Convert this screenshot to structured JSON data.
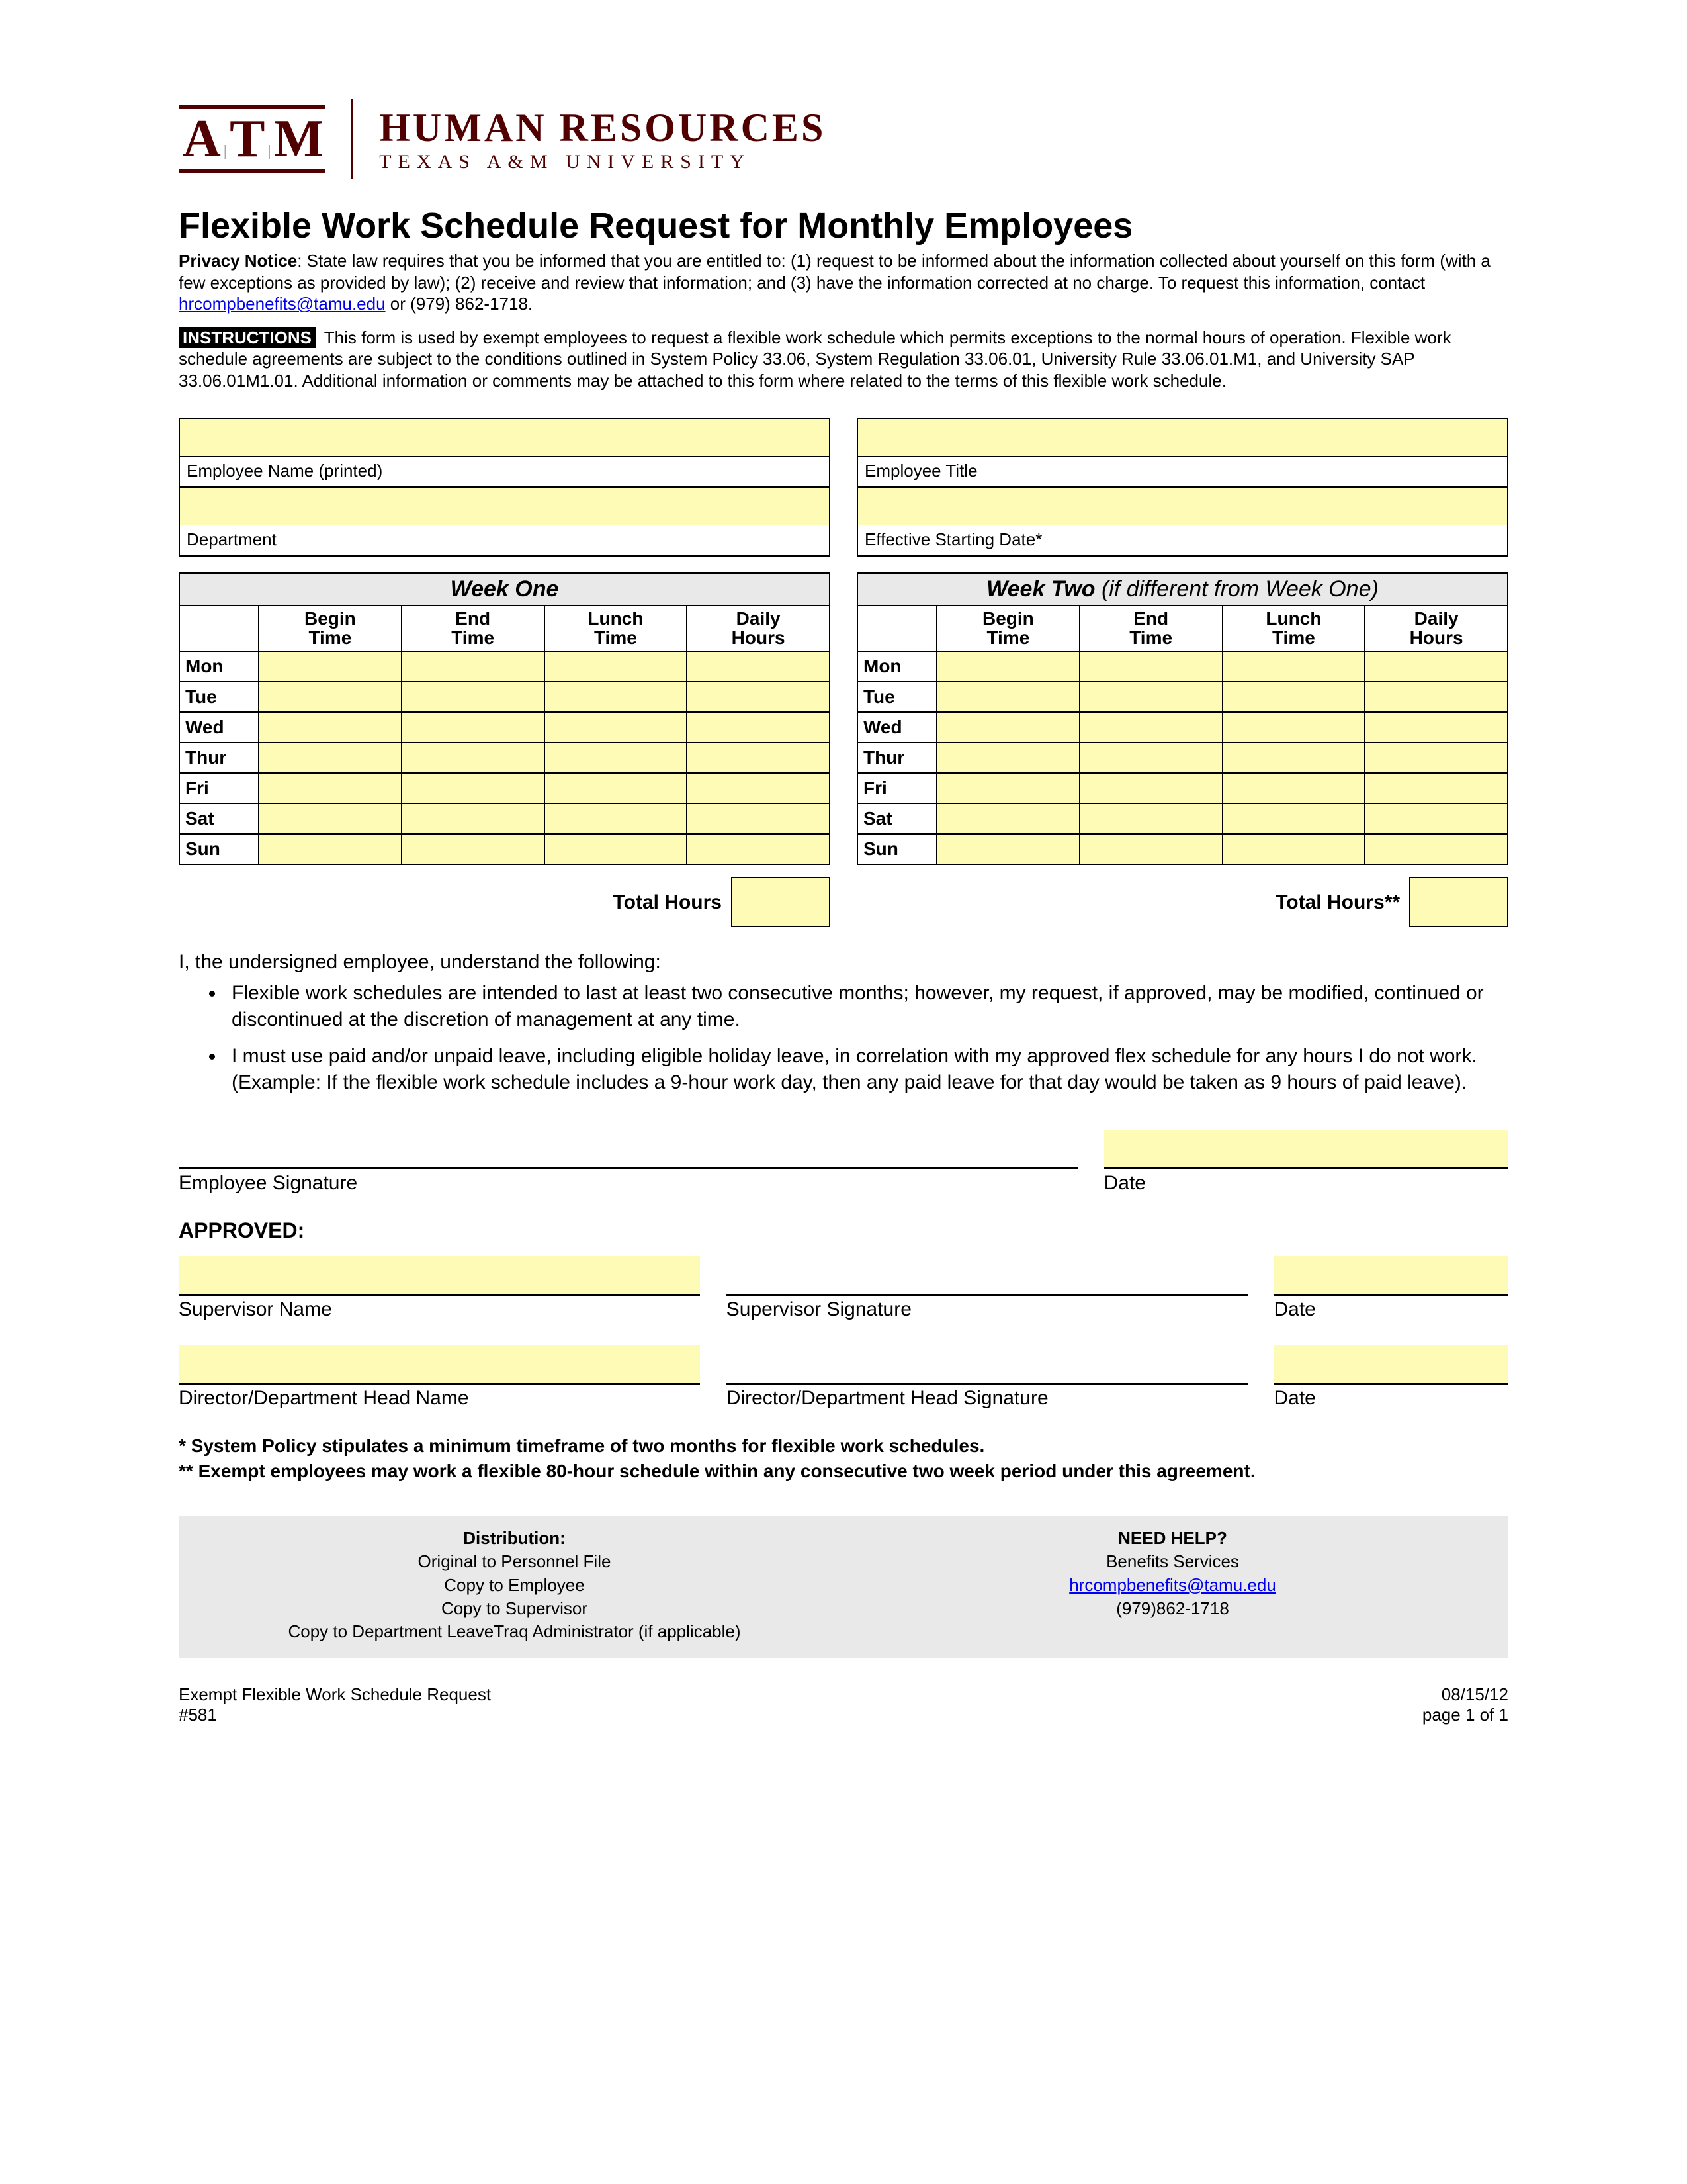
{
  "colors": {
    "maroon": "#500000",
    "fill": "#fdfbb5",
    "grey": "#e9e9e9",
    "link": "#0000ee",
    "border": "#000000",
    "background": "#ffffff"
  },
  "header": {
    "logo_text": "A|T|M",
    "dept": "HUMAN RESOURCES",
    "sub": "TEXAS A&M UNIVERSITY"
  },
  "title": "Flexible Work Schedule Request for Monthly Employees",
  "privacy": {
    "label": "Privacy Notice",
    "text": ": State law requires that you be informed that you are entitled to: (1) request to be informed about the information collected about yourself on this form (with a few exceptions as provided by law); (2) receive and review that information; and (3) have the information corrected at no charge. To request this information, contact ",
    "email": "hrcompbenefits@tamu.edu",
    "after_email": "  or (979) 862-1718."
  },
  "instructions": {
    "tag": "INSTRUCTIONS",
    "text": " This form is used by exempt employees to request a flexible work schedule which permits exceptions to the normal hours of operation.  Flexible work schedule agreements are subject to the conditions outlined in System Policy 33.06, System Regulation 33.06.01, University Rule 33.06.01.M1, and University SAP 33.06.01M1.01.  Additional information or comments may be attached to this form where related to the terms of this  flexible work schedule."
  },
  "fields": {
    "left": [
      {
        "label": "Employee Name (printed)"
      },
      {
        "label": "Department"
      }
    ],
    "right": [
      {
        "label": "Employee Title"
      },
      {
        "label": "Effective Starting Date*"
      }
    ]
  },
  "week_headers": [
    "",
    "Begin Time",
    "End Time",
    "Lunch Time",
    "Daily Hours"
  ],
  "days": [
    "Mon",
    "Tue",
    "Wed",
    "Thur",
    "Fri",
    "Sat",
    "Sun"
  ],
  "weeks": {
    "one": {
      "title": "Week One",
      "note": "",
      "total_label": "Total Hours"
    },
    "two": {
      "title": "Week Two",
      "note": " (if different from Week One)",
      "total_label": "Total Hours**"
    }
  },
  "understand": {
    "lead": "I, the undersigned employee, understand the following:",
    "bullets": [
      "Flexible work schedules are intended to last at least two consecutive months; however, my request, if approved, may be modified, continued or discontinued at the discretion of management at any time.",
      "I must use paid and/or unpaid leave, including eligible holiday leave, in correlation with my approved flex schedule for any hours I do not work. (Example: If the flexible work schedule includes a 9-hour work day, then any paid leave for that day would be taken as 9 hours of paid leave)."
    ]
  },
  "sign": {
    "emp_sig": "Employee Signature",
    "date": "Date",
    "approved": "APPROVED:",
    "sup_name": "Supervisor Name",
    "sup_sig": "Supervisor Signature",
    "dir_name": "Director/Department Head Name",
    "dir_sig": "Director/Department Head Signature"
  },
  "footnotes": [
    "* System Policy stipulates a minimum timeframe of two months for flexible work schedules.",
    "** Exempt employees may work a flexible 80-hour schedule within any consecutive two week period under this agreement."
  ],
  "dist": {
    "left_hd": "Distribution:",
    "left_lines": [
      "Original to Personnel File",
      "Copy to Employee",
      "Copy to Supervisor",
      "Copy to Department LeaveTraq Administrator (if applicable)"
    ],
    "right_hd": "NEED HELP?",
    "right_lines": [
      "Benefits Services",
      "hrcompbenefits@tamu.edu",
      "(979)862-1718"
    ]
  },
  "footer": {
    "left1": "Exempt Flexible Work Schedule Request",
    "left2": "#581",
    "right1": "08/15/12",
    "right2": "page 1 of 1"
  }
}
